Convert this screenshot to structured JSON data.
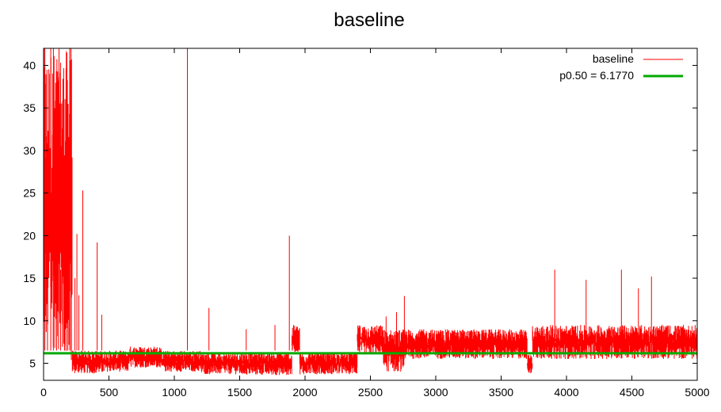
{
  "chart_data": {
    "type": "line",
    "title": "baseline",
    "xlabel": "",
    "ylabel": "",
    "xlim": [
      0,
      5000
    ],
    "ylim": [
      3,
      42
    ],
    "xticks": [
      0,
      500,
      1000,
      1500,
      2000,
      2500,
      3000,
      3500,
      4000,
      4500,
      5000
    ],
    "yticks": [
      5,
      10,
      15,
      20,
      25,
      30,
      35,
      40
    ],
    "grid": false,
    "legend_position": "top-right",
    "series": [
      {
        "name": "baseline",
        "color": "#ff0000",
        "style": "dense noisy line",
        "segments": [
          {
            "x_start": 0,
            "x_end": 120,
            "low": 6.5,
            "high": 42
          },
          {
            "x_start": 120,
            "x_end": 220,
            "low": 4.5,
            "high": 42
          },
          {
            "x_start": 220,
            "x_end": 480,
            "low": 3.8,
            "high": 6.5
          },
          {
            "x_start": 480,
            "x_end": 650,
            "low": 4.0,
            "high": 6.5
          },
          {
            "x_start": 650,
            "x_end": 900,
            "low": 4.5,
            "high": 7.0
          },
          {
            "x_start": 900,
            "x_end": 1200,
            "low": 4.0,
            "high": 6.5
          },
          {
            "x_start": 1200,
            "x_end": 1500,
            "low": 3.7,
            "high": 6.3
          },
          {
            "x_start": 1500,
            "x_end": 1900,
            "low": 3.6,
            "high": 6.3
          },
          {
            "x_start": 1900,
            "x_end": 1960,
            "low": 6.3,
            "high": 9.5
          },
          {
            "x_start": 1960,
            "x_end": 2400,
            "low": 3.7,
            "high": 6.3
          },
          {
            "x_start": 2400,
            "x_end": 2600,
            "low": 6.0,
            "high": 9.5
          },
          {
            "x_start": 2600,
            "x_end": 2760,
            "low": 4.0,
            "high": 9.0
          },
          {
            "x_start": 2760,
            "x_end": 3700,
            "low": 5.5,
            "high": 9.0
          },
          {
            "x_start": 3700,
            "x_end": 3740,
            "low": 3.8,
            "high": 6.0
          },
          {
            "x_start": 3740,
            "x_end": 5000,
            "low": 5.5,
            "high": 9.5
          }
        ],
        "spikes": [
          {
            "x": 10,
            "y": 42
          },
          {
            "x": 30,
            "y": 23
          },
          {
            "x": 55,
            "y": 42
          },
          {
            "x": 75,
            "y": 42
          },
          {
            "x": 100,
            "y": 26.5
          },
          {
            "x": 130,
            "y": 16
          },
          {
            "x": 160,
            "y": 18
          },
          {
            "x": 185,
            "y": 19
          },
          {
            "x": 200,
            "y": 42
          },
          {
            "x": 210,
            "y": 42
          },
          {
            "x": 240,
            "y": 15
          },
          {
            "x": 255,
            "y": 20.2
          },
          {
            "x": 270,
            "y": 13
          },
          {
            "x": 300,
            "y": 25.3
          },
          {
            "x": 410,
            "y": 19.2
          },
          {
            "x": 445,
            "y": 10.7
          },
          {
            "x": 1100,
            "y": 42
          },
          {
            "x": 1265,
            "y": 11.5
          },
          {
            "x": 1550,
            "y": 9.0
          },
          {
            "x": 1770,
            "y": 9.5
          },
          {
            "x": 1880,
            "y": 20.0
          },
          {
            "x": 2620,
            "y": 10.5
          },
          {
            "x": 2700,
            "y": 11.0
          },
          {
            "x": 2760,
            "y": 12.9
          },
          {
            "x": 3910,
            "y": 16.0
          },
          {
            "x": 4150,
            "y": 14.8
          },
          {
            "x": 4420,
            "y": 16.0
          },
          {
            "x": 4550,
            "y": 13.8
          },
          {
            "x": 4650,
            "y": 15.2
          }
        ]
      },
      {
        "name": "p0.50 = 6.1770",
        "color": "#00aa00",
        "style": "horizontal line",
        "value": 6.177
      }
    ]
  }
}
